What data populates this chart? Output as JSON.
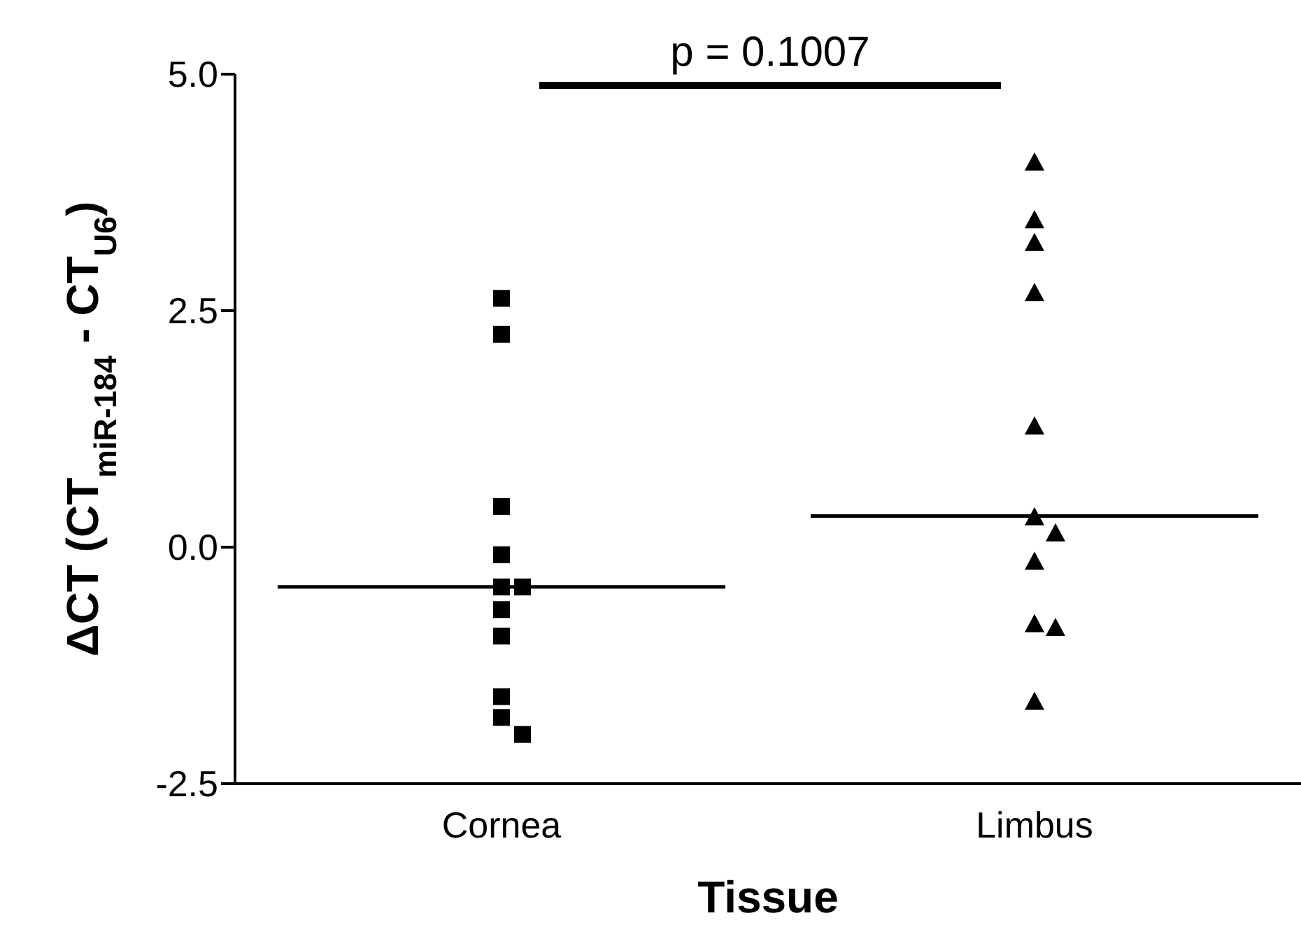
{
  "chart_data": {
    "type": "scatter",
    "xlabel": "Tissue",
    "ylabel": "ΔCT (CT$_{miR-184}$ - CT$_{U6}$)",
    "categories": [
      "Cornea",
      "Limbus"
    ],
    "ylim": [
      -2.5,
      5
    ],
    "yticks": [
      -2.5,
      {
        "value": 0,
        "label": "0.0"
      },
      2.5,
      {
        "value": 5,
        "label": "5.0"
      }
    ],
    "series": [
      {
        "color": "#000000",
        "marker": "square",
        "x": [
          "Cornea",
          "Cornea",
          "Cornea",
          "Cornea",
          "Cornea",
          "Cornea",
          "Cornea",
          "Cornea",
          "Cornea",
          "Cornea",
          "Cornea"
        ],
        "values": [
          2.63,
          2.25,
          0.43,
          -0.08,
          -0.42,
          -0.42,
          -0.66,
          -0.94,
          -1.58,
          -1.8,
          -1.98
        ]
      },
      {
        "color": "#000000",
        "marker": "triangle",
        "x": [
          "Limbus",
          "Limbus",
          "Limbus",
          "Limbus",
          "Limbus",
          "Limbus",
          "Limbus",
          "Limbus",
          "Limbus",
          "Limbus",
          "Limbus"
        ],
        "values": [
          4.07,
          3.46,
          3.22,
          2.69,
          1.28,
          0.32,
          0.15,
          -0.15,
          -0.81,
          -0.85,
          -1.63
        ]
      },
      {
        "type": "box",
        "color": "#000000",
        "boxes": [
          {
            "low": -0.42,
            "q1": -0.42,
            "median": -0.42,
            "q3": -0.42,
            "high": -0.42
          },
          {
            "low": 0.33,
            "q1": 0.33,
            "median": 0.33,
            "q3": 0.33,
            "high": 0.33
          }
        ]
      }
    ],
    "annotations": [
      "p = 0.1007"
    ]
  }
}
